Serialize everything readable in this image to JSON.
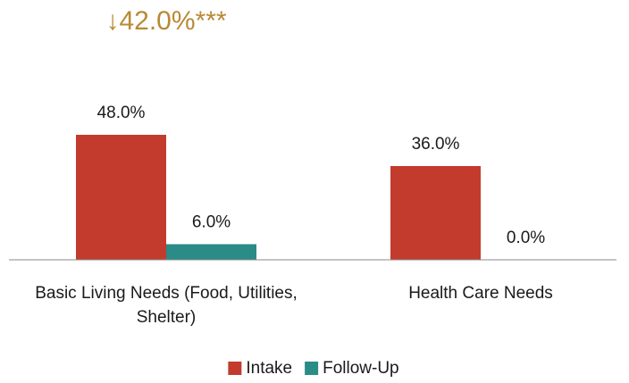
{
  "chart_data": {
    "type": "bar",
    "categories": [
      "Basic Living Needs (Food, Utilities, Shelter)",
      "Health Care Needs"
    ],
    "series": [
      {
        "name": "Intake",
        "color": "#c33b2d",
        "values": [
          48,
          36
        ],
        "value_labels": [
          "48.0%",
          "36.0%"
        ]
      },
      {
        "name": "Follow-Up",
        "color": "#2b8b87",
        "values": [
          6,
          0
        ],
        "value_labels": [
          "6.0%",
          "0.0%"
        ]
      }
    ],
    "annotations": [
      {
        "text": "↓42.0%***",
        "category": 0,
        "color": "#b88a35"
      }
    ],
    "legend": "bottom"
  }
}
